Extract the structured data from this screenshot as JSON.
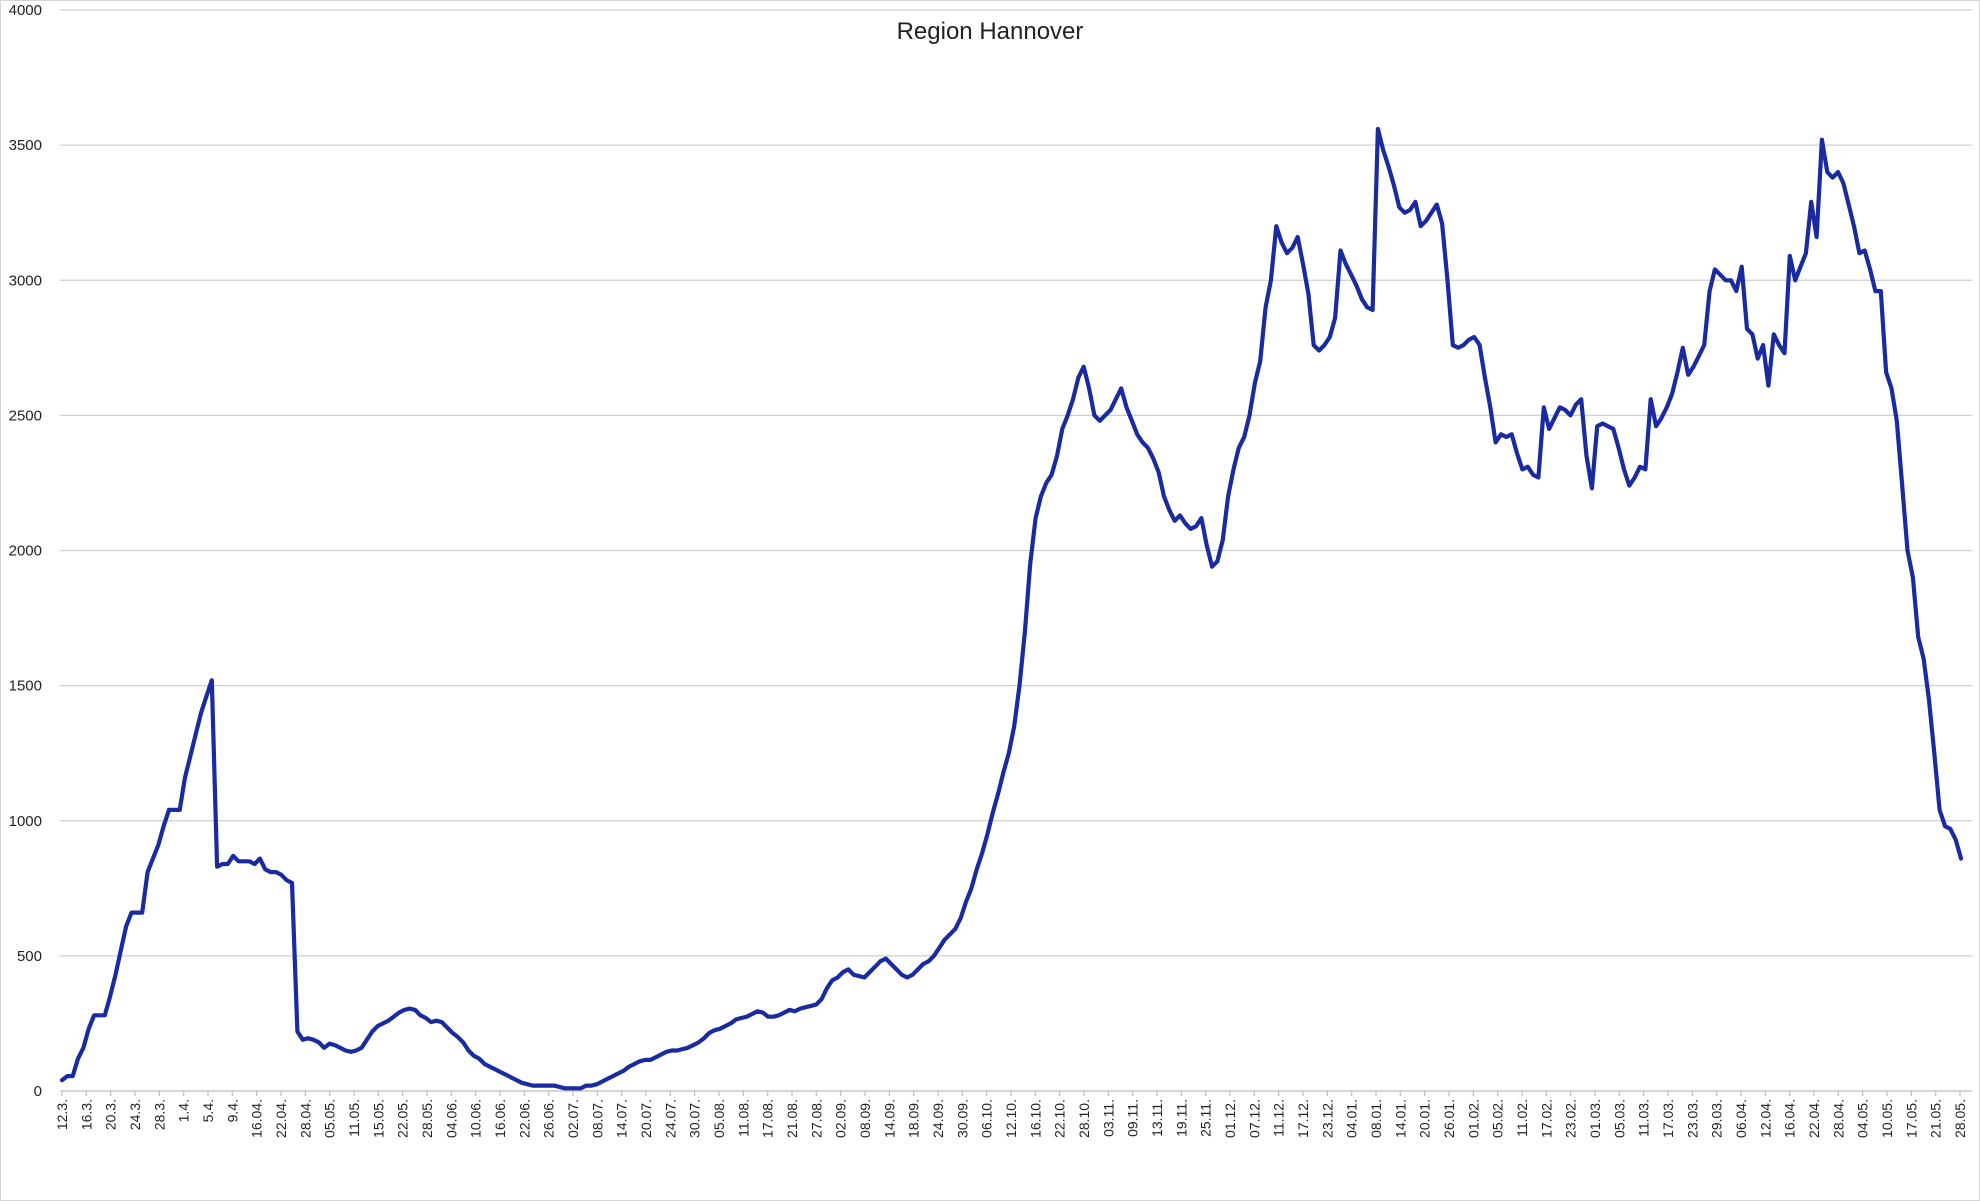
{
  "colors": {
    "series": "#1a2aa0",
    "grid": "#cfcfcf",
    "text": "#222222"
  },
  "chart_data": {
    "type": "line",
    "title": "Region Hannover",
    "xlabel": "",
    "ylabel": "",
    "ylim": [
      0,
      4000
    ],
    "yticks": [
      0,
      500,
      1000,
      1500,
      2000,
      2500,
      3000,
      3500,
      4000
    ],
    "grid": true,
    "legend": "none",
    "x_tick_labels": [
      "12.3.",
      "16.3.",
      "20.3.",
      "24.3.",
      "28.3.",
      "1.4.",
      "5.4.",
      "9.4.",
      "16.04.",
      "22.04.",
      "28.04.",
      "05.05.",
      "11.05.",
      "15.05.",
      "22.05.",
      "28.05.",
      "04.06.",
      "10.06.",
      "16.06.",
      "22.06.",
      "26.06.",
      "02.07.",
      "08.07.",
      "14.07.",
      "20.07.",
      "24.07.",
      "30.07.",
      "05.08.",
      "11.08.",
      "17.08.",
      "21.08.",
      "27.08.",
      "02.09.",
      "08.09.",
      "14.09.",
      "18.09.",
      "24.09.",
      "30.09.",
      "06.10.",
      "12.10.",
      "16.10.",
      "22.10.",
      "28.10.",
      "03.11.",
      "09.11.",
      "13.11.",
      "19.11.",
      "25.11.",
      "01.12.",
      "07.12.",
      "11.12.",
      "17.12.",
      "23.12.",
      "04.01.",
      "08.01.",
      "14.01.",
      "20.01.",
      "26.01.",
      "01.02.",
      "05.02.",
      "11.02.",
      "17.02.",
      "23.02.",
      "01.03.",
      "05.03.",
      "11.03.",
      "17.03.",
      "23.03.",
      "29.03.",
      "06.04.",
      "12.04.",
      "16.04.",
      "22.04.",
      "28.04.",
      "04.05.",
      "10.05.",
      "17.05.",
      "21.05.",
      "28.05."
    ],
    "series": [
      {
        "values": [
          40,
          55,
          55,
          120,
          160,
          230,
          280,
          280,
          280,
          350,
          430,
          520,
          610,
          660,
          660,
          660,
          810,
          860,
          910,
          980,
          1040,
          1040,
          1040,
          1160,
          1240,
          1320,
          1400,
          1460,
          1520,
          830,
          840,
          840,
          870,
          850,
          850,
          850,
          840,
          860,
          820,
          810,
          810,
          800,
          780,
          770,
          220,
          190,
          195,
          190,
          180,
          160,
          175,
          170,
          160,
          150,
          145,
          150,
          160,
          190,
          220,
          240,
          250,
          260,
          275,
          290,
          300,
          305,
          300,
          280,
          270,
          255,
          260,
          255,
          235,
          215,
          200,
          180,
          150,
          130,
          120,
          100,
          90,
          80,
          70,
          60,
          50,
          40,
          30,
          25,
          20,
          20,
          20,
          20,
          20,
          15,
          10,
          10,
          10,
          10,
          20,
          20,
          25,
          35,
          45,
          55,
          65,
          75,
          90,
          100,
          110,
          115,
          115,
          125,
          135,
          145,
          150,
          150,
          155,
          160,
          170,
          180,
          195,
          215,
          225,
          230,
          240,
          250,
          265,
          270,
          275,
          285,
          295,
          290,
          275,
          275,
          280,
          290,
          300,
          295,
          305,
          310,
          315,
          320,
          340,
          380,
          410,
          420,
          440,
          450,
          430,
          425,
          420,
          440,
          460,
          480,
          490,
          470,
          450,
          430,
          420,
          430,
          450,
          470,
          480,
          500,
          530,
          560,
          580,
          600,
          640,
          700,
          750,
          820,
          880,
          950,
          1030,
          1100,
          1180,
          1250,
          1350,
          1500,
          1700,
          1950,
          2120,
          2200,
          2250,
          2280,
          2350,
          2450,
          2500,
          2560,
          2640,
          2680,
          2600,
          2500,
          2480,
          2500,
          2520,
          2560,
          2600,
          2530,
          2480,
          2430,
          2400,
          2380,
          2340,
          2290,
          2200,
          2150,
          2110,
          2130,
          2100,
          2080,
          2090,
          2120,
          2020,
          1940,
          1960,
          2040,
          2200,
          2300,
          2380,
          2420,
          2500,
          2620,
          2700,
          2900,
          3000,
          3200,
          3140,
          3100,
          3120,
          3160,
          3060,
          2950,
          2760,
          2740,
          2760,
          2790,
          2860,
          3110,
          3060,
          3020,
          2980,
          2930,
          2900,
          2890,
          3560,
          3480,
          3420,
          3350,
          3270,
          3250,
          3260,
          3290,
          3200,
          3220,
          3250,
          3280,
          3210,
          3000,
          2760,
          2750,
          2760,
          2780,
          2790,
          2760,
          2640,
          2530,
          2400,
          2430,
          2420,
          2430,
          2360,
          2300,
          2310,
          2280,
          2270,
          2530,
          2450,
          2490,
          2530,
          2520,
          2500,
          2540,
          2560,
          2350,
          2230,
          2460,
          2470,
          2460,
          2450,
          2380,
          2300,
          2240,
          2270,
          2310,
          2300,
          2560,
          2460,
          2490,
          2530,
          2580,
          2660,
          2750,
          2650,
          2680,
          2720,
          2760,
          2960,
          3040,
          3020,
          3000,
          3000,
          2960,
          3050,
          2820,
          2800,
          2710,
          2760,
          2610,
          2800,
          2760,
          2730,
          3090,
          3000,
          3050,
          3100,
          3290,
          3160,
          3520,
          3400,
          3380,
          3400,
          3360,
          3280,
          3200,
          3100,
          3110,
          3040,
          2960,
          2960,
          2660,
          2600,
          2480,
          2240,
          2000,
          1900,
          1680,
          1600,
          1450,
          1250,
          1040,
          980,
          970,
          930,
          860
        ]
      }
    ]
  }
}
